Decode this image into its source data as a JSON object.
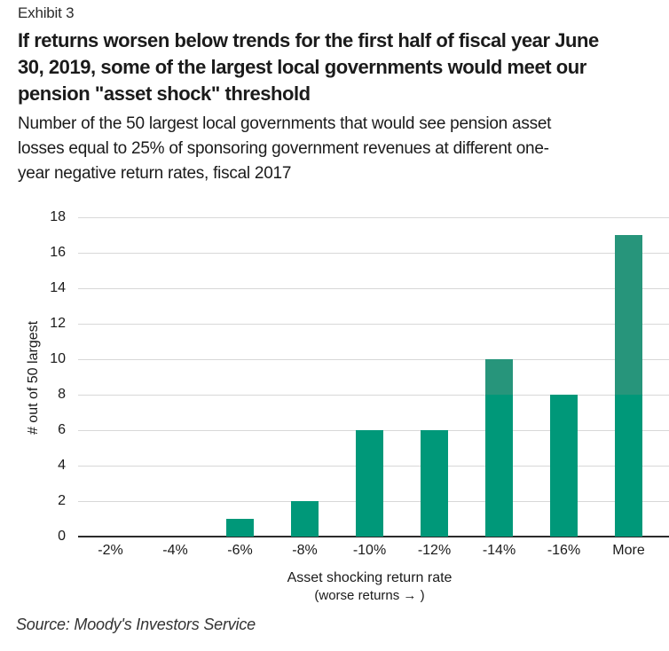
{
  "exhibit_label": "Exhibit 3",
  "title_lines": [
    "If returns worsen below trends for the first half of fiscal year June",
    "30, 2019, some of the largest local governments would meet our",
    "pension \"asset shock\" threshold"
  ],
  "subtitle_lines": [
    "Number of the 50 largest local governments that would see pension asset",
    "losses equal to 25% of sponsoring government revenues at different one-",
    "year negative return rates, fiscal 2017"
  ],
  "source": "Source: Moody's Investors Service",
  "colors": {
    "bar": "#009879",
    "bar_upper_tint": "#27957b",
    "gridline": "#d8d8d8",
    "axis_line": "#2b2b2b"
  },
  "chart_data": {
    "type": "bar",
    "categories": [
      "-2%",
      "-4%",
      "-6%",
      "-8%",
      "-10%",
      "-12%",
      "-14%",
      "-16%",
      "More"
    ],
    "values": [
      0,
      0,
      1,
      2,
      6,
      6,
      10,
      8,
      17
    ],
    "title": "",
    "xlabel": "Asset shocking return rate",
    "xlabel_sub": "(worse returns → )",
    "ylabel": "# out of 50 largest",
    "ylim": [
      0,
      18
    ],
    "ytick_step": 2,
    "grid": true,
    "legend": "none",
    "upper_tint_threshold": 8
  }
}
